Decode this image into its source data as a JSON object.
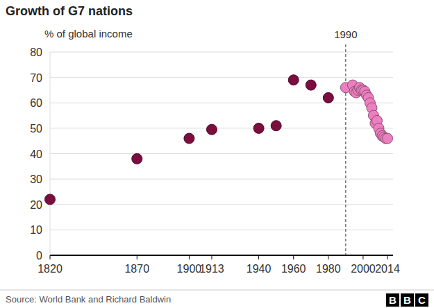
{
  "chart_data": {
    "type": "scatter",
    "title": "Growth of G7 nations",
    "y_label": "% of global income",
    "annotations": [
      {
        "text": "1990",
        "x": 1990
      }
    ],
    "series": [
      {
        "color": "#7b0d3f",
        "marker": "circle",
        "x": [
          1820,
          1870,
          1900,
          1913,
          1940,
          1950,
          1960,
          1970,
          1980
        ],
        "values": [
          22,
          38,
          46,
          49.5,
          50,
          51,
          69,
          67,
          62
        ]
      },
      {
        "color": "#ec7fbf",
        "marker": "circle",
        "x": [
          1990,
          1994,
          1995,
          1996,
          1997,
          1998,
          1999,
          2000,
          2001,
          2002,
          2003,
          2004,
          2005,
          2006,
          2007,
          2008,
          2009,
          2010,
          2011,
          2012,
          2013,
          2014
        ],
        "values": [
          66,
          67,
          64.5,
          64,
          65,
          66,
          65,
          65,
          64.5,
          63,
          62,
          60,
          58,
          55,
          52,
          53,
          50,
          48,
          47,
          46.5,
          46,
          46
        ]
      }
    ],
    "xlim": [
      1820,
      2014
    ],
    "ylim": [
      0,
      80
    ],
    "xticks": [
      1820,
      1870,
      1900,
      1913,
      1940,
      1960,
      1980,
      2000,
      2014
    ],
    "yticks": [
      0,
      10,
      20,
      30,
      40,
      50,
      60,
      70,
      80
    ],
    "grid": true,
    "source": "Source: World Bank and Richard Baldwin",
    "logo": "BBC"
  }
}
